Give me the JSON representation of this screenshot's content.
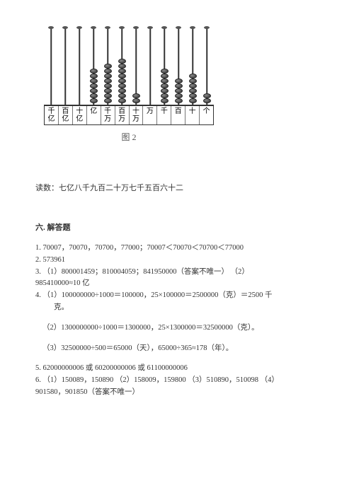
{
  "abacus": {
    "rods": [
      {
        "label": "千亿",
        "beads": 0
      },
      {
        "label": "百亿",
        "beads": 0
      },
      {
        "label": "十亿",
        "beads": 0
      },
      {
        "label": "亿",
        "beads": 7
      },
      {
        "label": "千万",
        "beads": 8
      },
      {
        "label": "百万",
        "beads": 9
      },
      {
        "label": "十万",
        "beads": 2
      },
      {
        "label": "万",
        "beads": 0
      },
      {
        "label": "千",
        "beads": 7
      },
      {
        "label": "百",
        "beads": 5
      },
      {
        "label": "十",
        "beads": 6
      },
      {
        "label": "个",
        "beads": 2
      }
    ],
    "caption": "图 2",
    "bead_color_gradient": [
      "#888",
      "#333"
    ],
    "rod_color": "#333",
    "border_color": "#333",
    "label_fontsize": 10
  },
  "read_number": {
    "prefix": "读数：",
    "text": "七亿八千九百二十万七千五百六十二"
  },
  "section_title": "六. 解答题",
  "answers": {
    "l1": "1. 70007，70070，70700，77000；70007＜70070＜70700＜77000",
    "l2": "2. 573961",
    "l3a": "3. （1）800001459；810004059；841950000（答案不唯一）   （2）",
    "l3b": "985410000≈10 亿",
    "l4a": "4. （1）100000000÷1000＝100000，25×100000＝2500000（克）＝2500 千",
    "l4b": "克。",
    "l4c": "（2）1300000000÷1000＝1300000，25×1300000＝32500000（克）。",
    "l4d": "（3）32500000÷500＝65000（天），65000÷365≈178（年）。",
    "l5": "5. 62000000006 或 60200000006 或 61100000006",
    "l6a": "6. （1）150089，150890 （2）158009，159800 （3）510890，510098 （4）",
    "l6b": "901580，901850（答案不唯一）"
  },
  "colors": {
    "background": "#ffffff",
    "text": "#333333",
    "caption": "#555555"
  }
}
